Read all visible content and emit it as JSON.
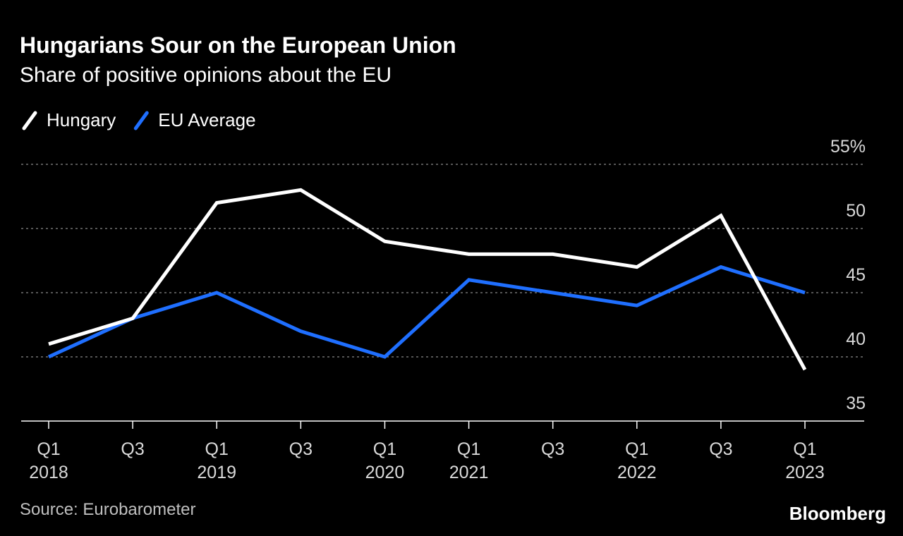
{
  "chart_data": {
    "type": "line",
    "title": "Hungarians Sour on the European Union",
    "subtitle": "Share of positive opinions about the EU",
    "categories": [
      {
        "quarter": "Q1",
        "year": "2018"
      },
      {
        "quarter": "Q3"
      },
      {
        "quarter": "Q1",
        "year": "2019"
      },
      {
        "quarter": "Q3"
      },
      {
        "quarter": "Q1",
        "year": "2020"
      },
      {
        "quarter": "Q1",
        "year": "2021"
      },
      {
        "quarter": "Q3"
      },
      {
        "quarter": "Q1",
        "year": "2022"
      },
      {
        "quarter": "Q3"
      },
      {
        "quarter": "Q1",
        "year": "2023"
      }
    ],
    "series": [
      {
        "name": "Hungary",
        "color": "#ffffff",
        "values": [
          41,
          43,
          52,
          53,
          49,
          48,
          48,
          47,
          51,
          39
        ]
      },
      {
        "name": "EU Average",
        "color": "#1f6fff",
        "values": [
          40,
          43,
          45,
          42,
          40,
          46,
          45,
          44,
          47,
          45
        ]
      }
    ],
    "ylim": [
      35,
      55
    ],
    "yticks": [
      35,
      40,
      45,
      50,
      {
        "value": 55,
        "label": "55%"
      }
    ],
    "grid": true,
    "source": "Source: Eurobarometer",
    "brand": "Bloomberg"
  }
}
